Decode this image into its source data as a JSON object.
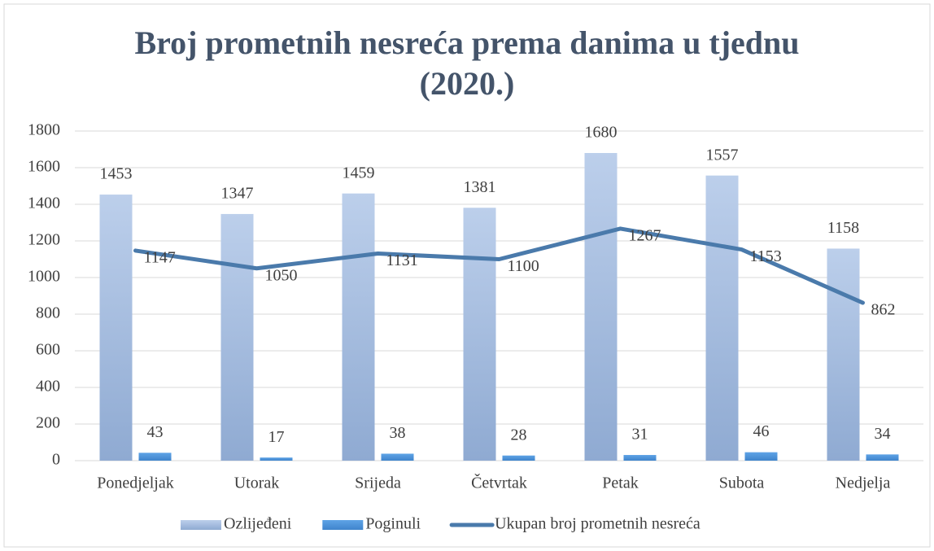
{
  "chart_data": {
    "type": "bar",
    "title": "Broj prometnih nesreća prema danima u tjednu (2020.)",
    "categories": [
      "Ponedjeljak",
      "Utorak",
      "Srijeda",
      "Četvrtak",
      "Petak",
      "Subota",
      "Nedjelja"
    ],
    "series": [
      {
        "name": "Ozlijeđeni",
        "color": "#a9c1e5",
        "values": [
          1453,
          1347,
          1459,
          1381,
          1680,
          1557,
          1158
        ]
      },
      {
        "name": "Poginuli",
        "color": "#4a90d9",
        "values": [
          43,
          17,
          38,
          28,
          31,
          46,
          34
        ]
      },
      {
        "name": "Ukupan broj prometnih nesreća",
        "type": "line",
        "color": "#4a7aab",
        "values": [
          1147,
          1050,
          1131,
          1100,
          1267,
          1153,
          862
        ]
      }
    ],
    "ylim": [
      0,
      1800
    ],
    "yticks": [
      0,
      200,
      400,
      600,
      800,
      1000,
      1200,
      1400,
      1600,
      1800
    ],
    "grid": true,
    "legend": "bottom"
  }
}
